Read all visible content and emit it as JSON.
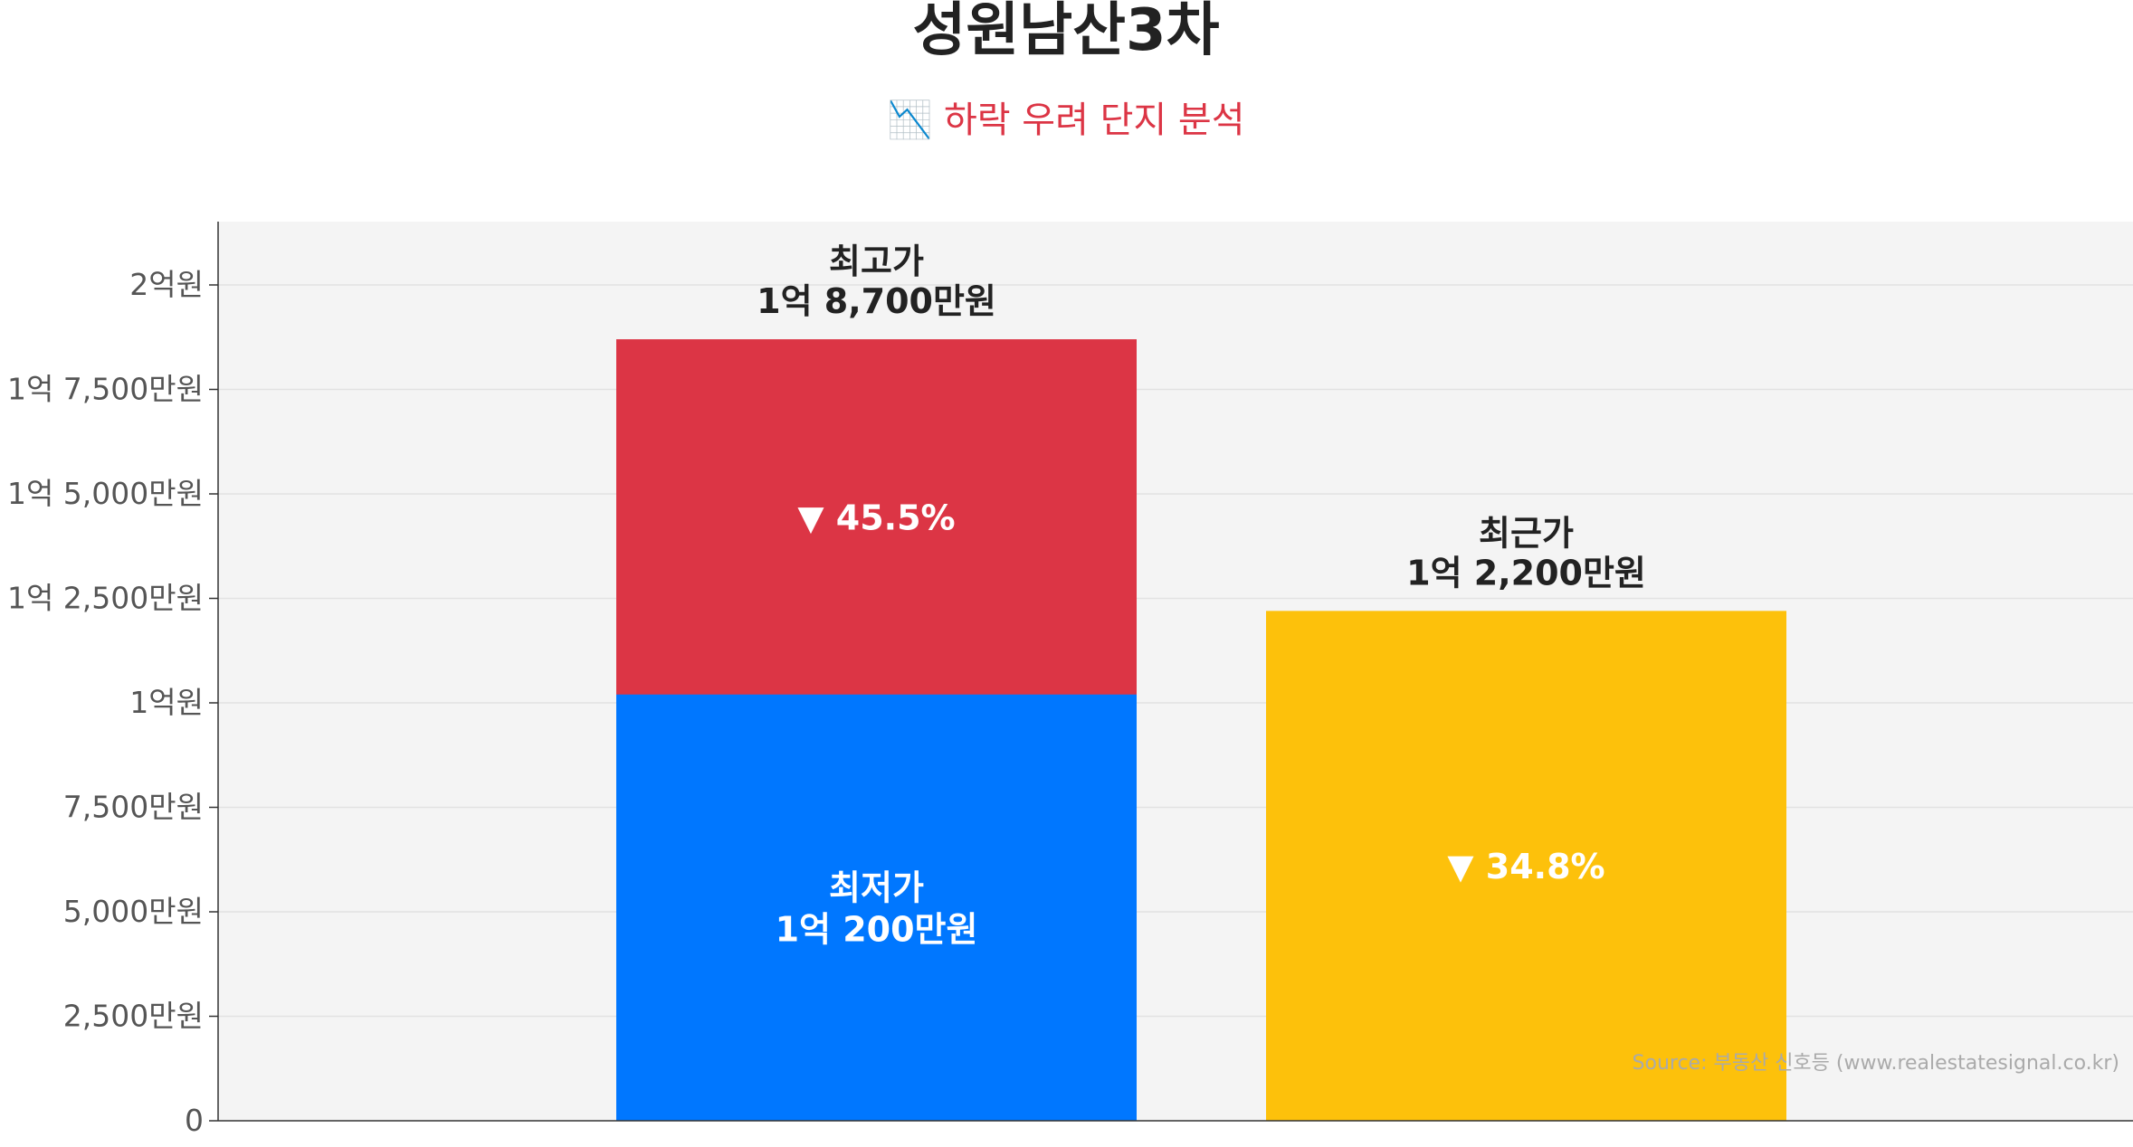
{
  "chart_data": {
    "type": "bar",
    "title": "성원남산3차",
    "subtitle": "📉 하락 우려 단지 분석",
    "ylim": [
      0,
      21500
    ],
    "unit": "만원",
    "yticks": [
      {
        "value": 0,
        "label": "0"
      },
      {
        "value": 2500,
        "label": "2,500만원"
      },
      {
        "value": 5000,
        "label": "5,000만원"
      },
      {
        "value": 7500,
        "label": "7,500만원"
      },
      {
        "value": 10000,
        "label": "1억원"
      },
      {
        "value": 12500,
        "label": "1억 2,500만원"
      },
      {
        "value": 15000,
        "label": "1억 5,000만원"
      },
      {
        "value": 17500,
        "label": "1억 7,500만원"
      },
      {
        "value": 20000,
        "label": "2억원"
      }
    ],
    "grid": true,
    "bars": [
      {
        "segments": [
          {
            "name": "최저가",
            "value": 10200,
            "color": "#0077ff"
          },
          {
            "name": "최고가",
            "value": 18700,
            "color": "#dc3545"
          }
        ],
        "top_label": {
          "line1": "최고가",
          "line2": "1억 8,700만원"
        },
        "inner_label": {
          "line1": "최저가",
          "line2": "1억 200만원"
        },
        "change_label": "▼ 45.5%"
      },
      {
        "segments": [
          {
            "name": "최근가",
            "value": 12200,
            "color": "#fdc10b"
          }
        ],
        "top_label": {
          "line1": "최근가",
          "line2": "1억 2,200만원"
        },
        "change_label": "▼ 34.8%"
      }
    ],
    "source": "Source: 부동산 신호등 (www.realestatesignal.co.kr)"
  },
  "colors": {
    "plot_bg": "#f4f4f4",
    "title": "#222222",
    "subtitle": "#dc3545",
    "tick": "#555555",
    "label": "#222222",
    "source": "#aaaaaa"
  }
}
